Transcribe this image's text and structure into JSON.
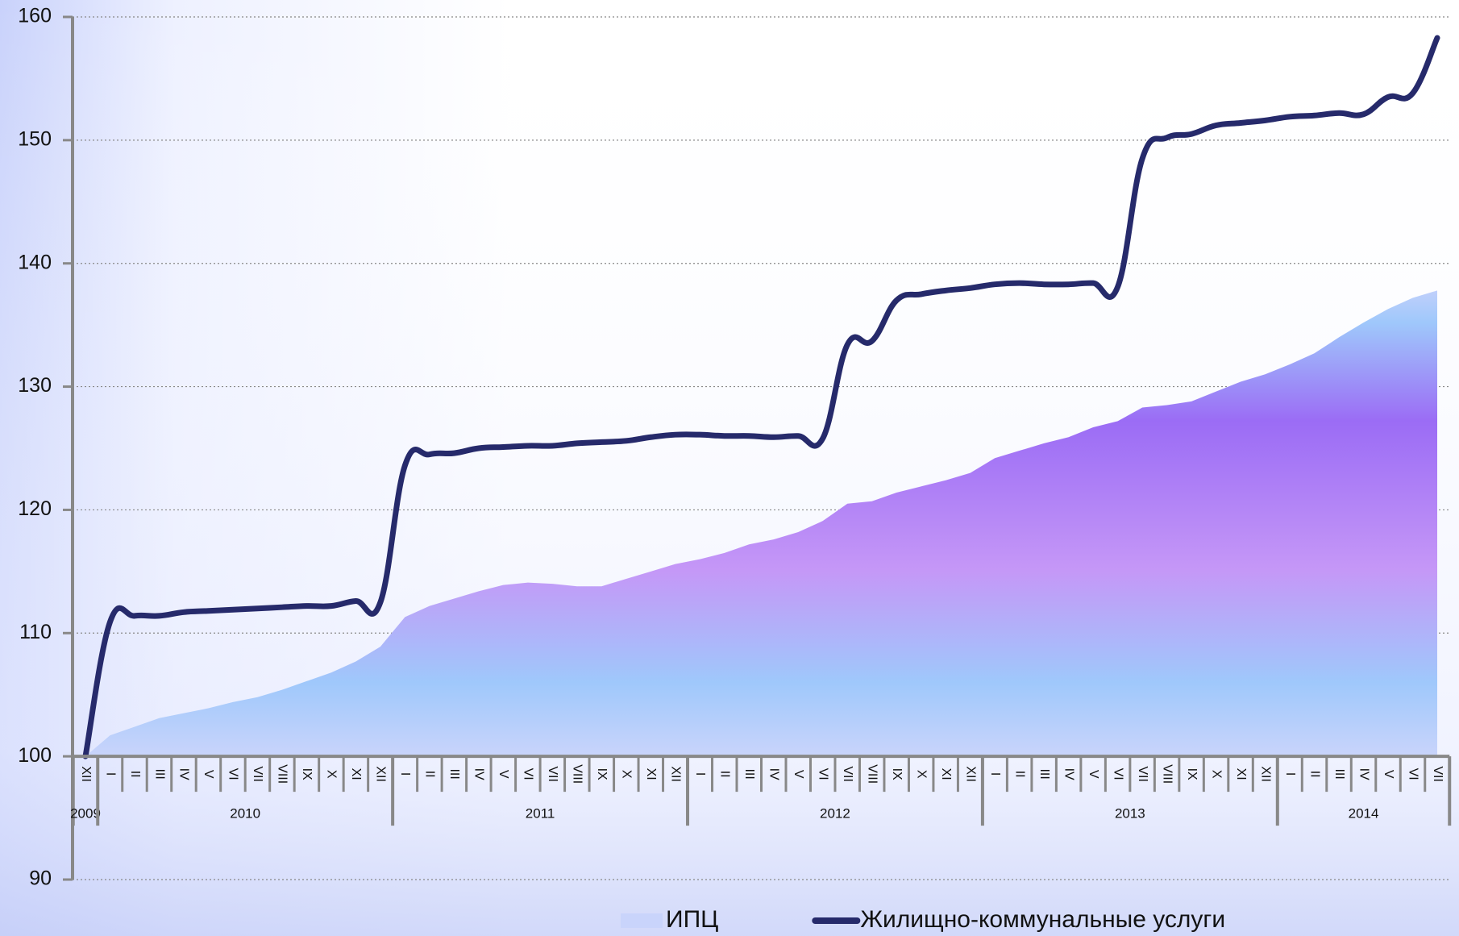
{
  "chart_data": {
    "type": "area_line",
    "groups": [
      {
        "label": "2009",
        "categories": [
          "XII"
        ]
      },
      {
        "label": "2010",
        "categories": [
          "I",
          "II",
          "III",
          "IV",
          "V",
          "VI",
          "VII",
          "VIII",
          "IX",
          "X",
          "XI",
          "XII"
        ]
      },
      {
        "label": "2011",
        "categories": [
          "I",
          "II",
          "III",
          "IV",
          "V",
          "VI",
          "VII",
          "VIII",
          "IX",
          "X",
          "XI",
          "XII"
        ]
      },
      {
        "label": "2012",
        "categories": [
          "I",
          "II",
          "III",
          "IV",
          "V",
          "VI",
          "VII",
          "VIII",
          "IX",
          "X",
          "XI",
          "XII"
        ]
      },
      {
        "label": "2013",
        "categories": [
          "I",
          "II",
          "III",
          "IV",
          "V",
          "VI",
          "VII",
          "VIII",
          "IX",
          "X",
          "XI",
          "XII"
        ]
      },
      {
        "label": "2014",
        "categories": [
          "I",
          "II",
          "III",
          "IV",
          "V",
          "VI",
          "VII"
        ]
      }
    ],
    "series": [
      {
        "name": "ИПЦ",
        "kind": "area",
        "color": "#9b6cf5",
        "values": [
          100,
          101.7,
          102.4,
          103.1,
          103.5,
          103.9,
          104.4,
          104.8,
          105.4,
          106.1,
          106.8,
          107.7,
          108.9,
          111.3,
          112.2,
          112.8,
          113.4,
          113.9,
          114.1,
          114.0,
          113.8,
          113.8,
          114.4,
          115.0,
          115.6,
          116.0,
          116.5,
          117.2,
          117.6,
          118.2,
          119.1,
          120.5,
          120.7,
          121.4,
          121.9,
          122.4,
          123.0,
          124.2,
          124.8,
          125.4,
          125.9,
          126.7,
          127.2,
          128.3,
          128.5,
          128.8,
          129.6,
          130.4,
          131.0,
          131.8,
          132.7,
          134.0,
          135.2,
          136.3,
          137.2,
          137.8
        ]
      },
      {
        "name": "Жилищно-коммунальные услуги",
        "kind": "line",
        "color": "#262a6b",
        "values": [
          100,
          110.9,
          111.4,
          111.4,
          111.7,
          111.8,
          111.9,
          112.0,
          112.1,
          112.2,
          112.2,
          112.6,
          112.5,
          123.6,
          124.5,
          124.6,
          125.0,
          125.1,
          125.2,
          125.2,
          125.4,
          125.5,
          125.6,
          125.9,
          126.1,
          126.1,
          126.0,
          126.0,
          125.9,
          126.0,
          125.8,
          133.4,
          133.7,
          137.0,
          137.5,
          137.8,
          138.0,
          138.3,
          138.4,
          138.3,
          138.3,
          138.4,
          138.1,
          148.5,
          150.2,
          150.5,
          151.2,
          151.4,
          151.6,
          151.9,
          152.0,
          152.2,
          152.1,
          153.5,
          153.8,
          158.3
        ]
      }
    ],
    "ylim": [
      90,
      160
    ],
    "yticks": [
      90,
      100,
      110,
      120,
      130,
      140,
      150,
      160
    ],
    "category_axis_at": 100,
    "grid": true,
    "legend": "bottom"
  }
}
